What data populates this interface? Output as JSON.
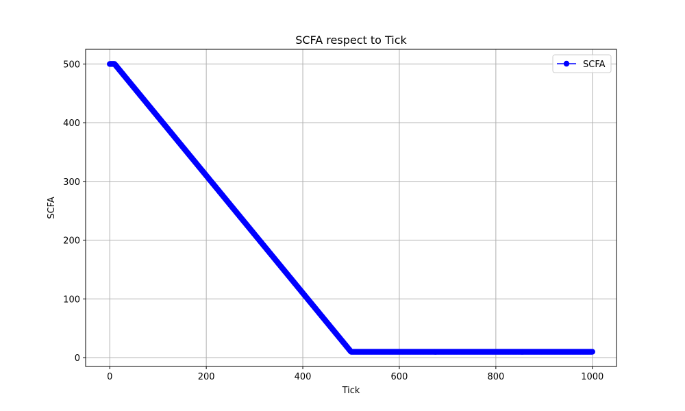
{
  "chart_data": {
    "type": "line",
    "title": "SCFA respect to Tick",
    "xlabel": "Tick",
    "ylabel": "SCFA",
    "xlim": [
      -50,
      1050
    ],
    "ylim": [
      -15,
      525
    ],
    "xticks": [
      0,
      200,
      400,
      600,
      800,
      1000
    ],
    "yticks": [
      0,
      100,
      200,
      300,
      400,
      500
    ],
    "grid": true,
    "legend_position": "top-right",
    "series": [
      {
        "name": "SCFA",
        "color": "#0000ff",
        "marker": "circle",
        "segments": [
          {
            "x_start": 0,
            "x_end": 10,
            "y_start": 500,
            "y_end": 500
          },
          {
            "x_start": 10,
            "x_end": 500,
            "y_start": 500,
            "y_end": 10
          },
          {
            "x_start": 500,
            "x_end": 1000,
            "y_start": 10,
            "y_end": 10
          }
        ]
      }
    ]
  }
}
